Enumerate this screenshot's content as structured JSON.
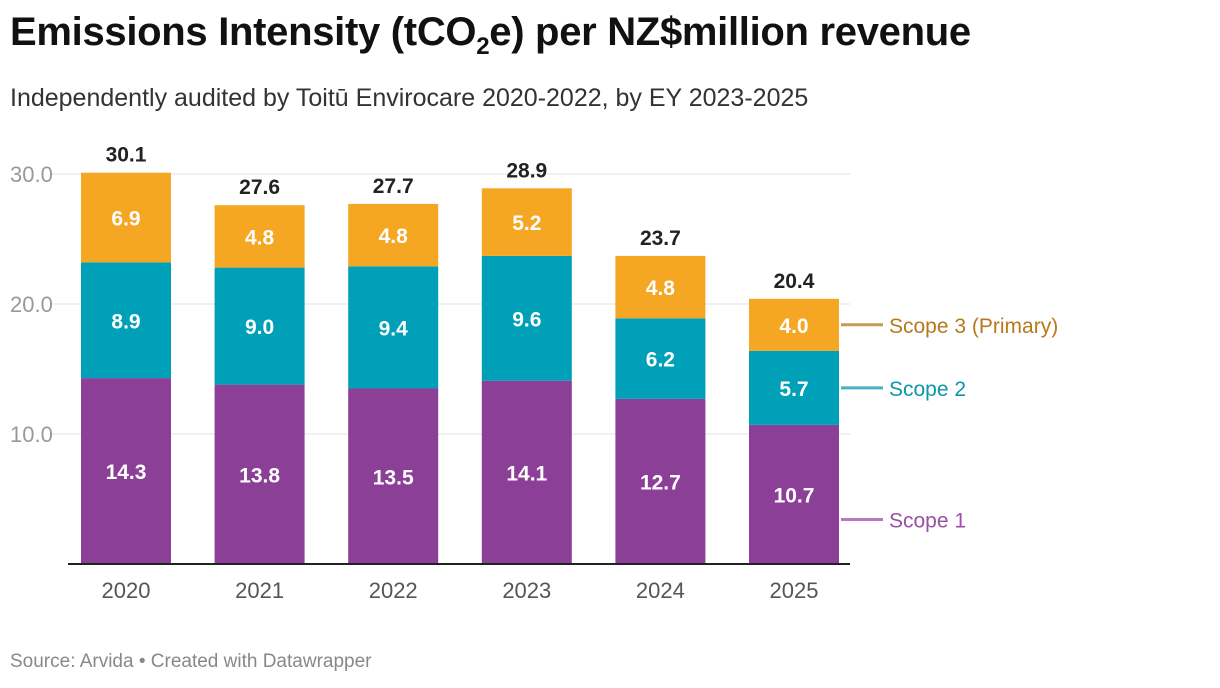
{
  "header": {
    "title_main": "Emissions Intensity (tCO",
    "title_sub": "2",
    "title_tail": "e) per NZ$million revenue",
    "subtitle": "Independently audited by Toitū Envirocare 2020-2022, by EY 2023-2025"
  },
  "footer": {
    "source": "Source: Arvida • Created with Datawrapper"
  },
  "chart_data": {
    "type": "bar",
    "stacked": true,
    "title": "Emissions Intensity (tCO2e) per NZ$million revenue",
    "subtitle": "Independently audited by Toitū Envirocare 2020-2022, by EY 2023-2025",
    "categories": [
      "2020",
      "2021",
      "2022",
      "2023",
      "2024",
      "2025"
    ],
    "series": [
      {
        "name": "Scope 1",
        "color": "#8b3f96",
        "legend_color": "#9a4fa6",
        "values": [
          14.3,
          13.8,
          13.5,
          14.1,
          12.7,
          10.7
        ]
      },
      {
        "name": "Scope 2",
        "color": "#00a0b8",
        "legend_color": "#0a97ab",
        "values": [
          8.9,
          9.0,
          9.4,
          9.6,
          6.2,
          5.7
        ]
      },
      {
        "name": "Scope 3 (Primary)",
        "color": "#f5a623",
        "legend_color": "#b8791c",
        "values": [
          6.9,
          4.8,
          4.8,
          5.2,
          4.8,
          4.0
        ]
      }
    ],
    "value_labels": [
      [
        "14.3",
        "13.8",
        "13.5",
        "14.1",
        "12.7",
        "10.7"
      ],
      [
        "8.9",
        "9.0",
        "9.4",
        "9.6",
        "6.2",
        "5.7"
      ],
      [
        "6.9",
        "4.8",
        "4.8",
        "5.2",
        "4.8",
        "4.0"
      ]
    ],
    "totals": [
      30.1,
      27.6,
      27.7,
      28.9,
      23.7,
      20.4
    ],
    "total_labels": [
      "30.1",
      "27.6",
      "27.7",
      "28.9",
      "23.7",
      "20.4"
    ],
    "y_ticks": [
      10,
      20,
      30
    ],
    "y_tick_labels": [
      "10.0",
      "20.0",
      "30.0"
    ],
    "ylim": [
      0,
      30
    ],
    "grid": true,
    "legend_position": "right, inline beside last bar",
    "xlabel": "",
    "ylabel": ""
  }
}
